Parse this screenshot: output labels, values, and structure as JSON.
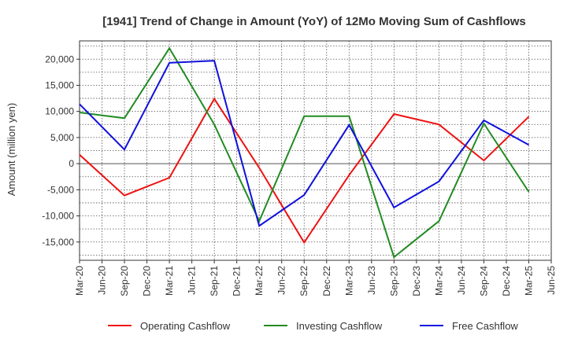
{
  "chart_data": {
    "type": "line",
    "title": "[1941]  Trend of Change in Amount (YoY) of 12Mo Moving Sum of Cashflows",
    "ylabel": "Amount (million yen)",
    "xlabel": "",
    "ylim": [
      -18500,
      23500
    ],
    "yticks": [
      -15000,
      -10000,
      -5000,
      0,
      5000,
      10000,
      15000,
      20000
    ],
    "ytick_labels": [
      "-15,000",
      "-10,000",
      "-5,000",
      "0",
      "5,000",
      "10,000",
      "15,000",
      "20,000"
    ],
    "categories": [
      "Mar-20",
      "Jun-20",
      "Sep-20",
      "Dec-20",
      "Mar-21",
      "Jun-21",
      "Sep-21",
      "Dec-21",
      "Mar-22",
      "Jun-22",
      "Sep-22",
      "Dec-22",
      "Mar-23",
      "Jun-23",
      "Sep-23",
      "Dec-23",
      "Mar-24",
      "Jun-24",
      "Sep-24",
      "Dec-24",
      "Mar-25",
      "Jun-25"
    ],
    "grid": true,
    "legend_position": "bottom",
    "series": [
      {
        "name": "Operating Cashflow",
        "color": "#ee1111",
        "values": [
          1700,
          null,
          -6100,
          null,
          -2700,
          null,
          12400,
          null,
          -800,
          null,
          -15100,
          null,
          -2200,
          null,
          9500,
          null,
          7500,
          null,
          600,
          null,
          9000,
          null
        ]
      },
      {
        "name": "Investing Cashflow",
        "color": "#228b22",
        "values": [
          9800,
          null,
          8700,
          null,
          22100,
          null,
          7500,
          null,
          -11000,
          null,
          9100,
          null,
          9100,
          null,
          -17900,
          null,
          -11000,
          null,
          7700,
          null,
          -5400,
          null
        ]
      },
      {
        "name": "Free Cashflow",
        "color": "#1111dd",
        "values": [
          11400,
          null,
          2700,
          null,
          19300,
          null,
          19700,
          null,
          -11900,
          null,
          -6000,
          null,
          7400,
          null,
          -8400,
          null,
          -3400,
          null,
          8300,
          null,
          3600,
          null
        ]
      }
    ]
  }
}
